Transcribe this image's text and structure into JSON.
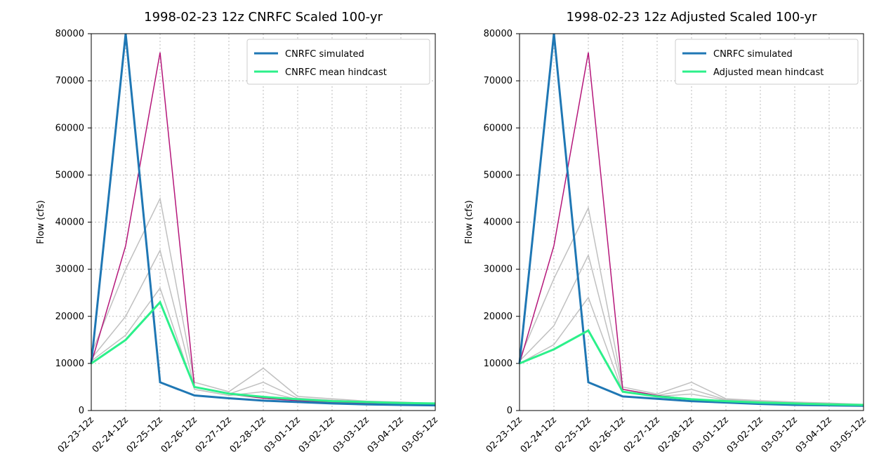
{
  "chart_data": [
    {
      "type": "line",
      "title": "1998-02-23 12z CNRFC Scaled 100-yr",
      "ylabel": "Flow (cfs)",
      "categories": [
        "02-23-12z",
        "02-24-12z",
        "02-25-12z",
        "02-26-12z",
        "02-27-12z",
        "02-28-12z",
        "03-01-12z",
        "03-02-12z",
        "03-03-12z",
        "03-04-12z",
        "03-05-12z"
      ],
      "ylim": [
        0,
        80000
      ],
      "yticks": [
        0,
        10000,
        20000,
        30000,
        40000,
        50000,
        60000,
        70000,
        80000
      ],
      "grid": true,
      "legend": "upper right",
      "series": [
        {
          "color": "#c0c0c0",
          "values": [
            12000,
            30000,
            45000,
            6000,
            4000,
            9000,
            3000,
            2500,
            2000,
            1800,
            1500
          ]
        },
        {
          "color": "#c0c0c0",
          "values": [
            11000,
            20000,
            34000,
            5000,
            3500,
            6000,
            2600,
            2200,
            1900,
            1700,
            1400
          ]
        },
        {
          "color": "#c0c0c0",
          "values": [
            10500,
            16000,
            26000,
            4500,
            3200,
            4000,
            2400,
            2100,
            1800,
            1600,
            1300
          ]
        },
        {
          "color": "#b5177a",
          "values": [
            10000,
            35000,
            76000,
            5000,
            3500,
            2600,
            2100,
            1800,
            1500,
            1300,
            1200
          ]
        },
        {
          "name": "CNRFC simulated",
          "color": "#1f77b4",
          "values": [
            10000,
            80000,
            6000,
            3200,
            2600,
            2100,
            1800,
            1500,
            1300,
            1200,
            1100
          ]
        },
        {
          "name": "CNRFC mean hindcast",
          "color": "#2cf08a",
          "values": [
            10000,
            15000,
            23000,
            5000,
            3600,
            2900,
            2400,
            2000,
            1800,
            1600,
            1500
          ]
        }
      ]
    },
    {
      "type": "line",
      "title": "1998-02-23 12z Adjusted Scaled 100-yr",
      "ylabel": "Flow (cfs)",
      "categories": [
        "02-23-12z",
        "02-24-12z",
        "02-25-12z",
        "02-26-12z",
        "02-27-12z",
        "02-28-12z",
        "03-01-12z",
        "03-02-12z",
        "03-03-12z",
        "03-04-12z",
        "03-05-12z"
      ],
      "ylim": [
        0,
        80000
      ],
      "yticks": [
        0,
        10000,
        20000,
        30000,
        40000,
        50000,
        60000,
        70000,
        80000
      ],
      "grid": true,
      "legend": "upper right",
      "series": [
        {
          "color": "#c0c0c0",
          "values": [
            11000,
            28000,
            43000,
            5000,
            3500,
            6000,
            2500,
            2100,
            1800,
            1600,
            1300
          ]
        },
        {
          "color": "#c0c0c0",
          "values": [
            10500,
            18000,
            33000,
            4500,
            3200,
            4500,
            2300,
            2000,
            1700,
            1500,
            1200
          ]
        },
        {
          "color": "#c0c0c0",
          "values": [
            10000,
            14000,
            24000,
            4000,
            3000,
            3500,
            2200,
            1900,
            1600,
            1400,
            1100
          ]
        },
        {
          "color": "#b5177a",
          "values": [
            10000,
            35000,
            76000,
            4500,
            3200,
            2400,
            2000,
            1700,
            1400,
            1200,
            1100
          ]
        },
        {
          "name": "CNRFC simulated",
          "color": "#1f77b4",
          "values": [
            10000,
            80000,
            6000,
            3000,
            2500,
            2000,
            1700,
            1400,
            1200,
            1100,
            1000
          ]
        },
        {
          "name": "Adjusted mean hindcast",
          "color": "#2cf08a",
          "values": [
            10000,
            13000,
            17000,
            4000,
            3000,
            2400,
            2000,
            1700,
            1500,
            1300,
            1200
          ]
        }
      ]
    }
  ]
}
